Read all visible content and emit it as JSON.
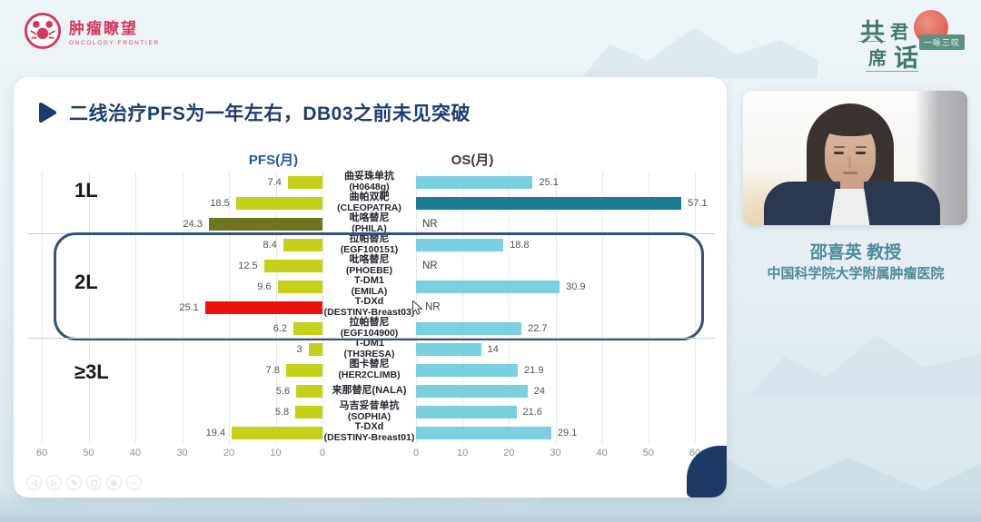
{
  "header": {
    "logo_left": {
      "title": "肿瘤瞭望",
      "subtitle": "ONCOLOGY FRONTIER"
    },
    "logo_right": {
      "chars": [
        "共",
        "君",
        "席",
        "话"
      ],
      "badge": "一咏三叹"
    }
  },
  "slide": {
    "title": "二线治疗PFS为一年左右，DB03之前未见突破"
  },
  "chart_data": {
    "type": "bar",
    "orientation": "horizontal-mirrored",
    "left_header": "PFS(月)",
    "right_header": "OS(月)",
    "axis": {
      "max": 60,
      "left_ticks": [
        "60",
        "50",
        "40",
        "30",
        "20",
        "10",
        "0"
      ],
      "right_ticks": [
        "0",
        "10",
        "20",
        "30",
        "40",
        "50",
        "60"
      ]
    },
    "colors": {
      "pfs_default": "#c3d219",
      "pfs_dark": "#6d751f",
      "pfs_highlight": "#ee0f0f",
      "os_default": "#7ad0e0",
      "os_dark": "#1b7d93"
    },
    "groups": [
      {
        "label": "1L",
        "count": 3
      },
      {
        "label": "2L",
        "count": 5,
        "boxed": true
      },
      {
        "label": "≥3L",
        "count": 5
      }
    ],
    "rows": [
      {
        "group": "1L",
        "drug": "曲妥珠单抗",
        "trial": "(H0648g)",
        "pfs": 7.4,
        "os": 25.1
      },
      {
        "group": "1L",
        "drug": "曲帕双靶",
        "trial": "(CLEOPATRA)",
        "pfs": 18.5,
        "os": 57.1,
        "os_style": "dark"
      },
      {
        "group": "1L",
        "drug": "吡咯替尼",
        "trial": "(PHILA)",
        "pfs": 24.3,
        "pfs_style": "dark",
        "os": null,
        "os_label": "NR"
      },
      {
        "group": "2L",
        "drug": "拉帕替尼",
        "trial": "(EGF100151)",
        "pfs": 8.4,
        "os": 18.8
      },
      {
        "group": "2L",
        "drug": "吡咯替尼",
        "trial": "(PHOEBE)",
        "pfs": 12.5,
        "os": null,
        "os_label": "NR"
      },
      {
        "group": "2L",
        "drug": "T-DM1",
        "trial": "(EMILA)",
        "pfs": 9.6,
        "os": 30.9
      },
      {
        "group": "2L",
        "drug": "T-DXd",
        "trial": "(DESTINY-Breast03)",
        "pfs": 25.1,
        "pfs_style": "highlight",
        "os": null,
        "os_label": "NR",
        "cursor": true
      },
      {
        "group": "2L",
        "drug": "拉帕替尼",
        "trial": "(EGF104900)",
        "pfs": 6.2,
        "os": 22.7
      },
      {
        "group": "≥3L",
        "drug": "T-DM1",
        "trial": "(TH3RESA)",
        "pfs": 3,
        "os": 14
      },
      {
        "group": "≥3L",
        "drug": "图卡替尼",
        "trial": "(HER2CLIMB)",
        "pfs": 7.8,
        "os": 21.9
      },
      {
        "group": "≥3L",
        "drug": "来那替尼(NALA)",
        "trial": "",
        "pfs": 5.6,
        "os": 24
      },
      {
        "group": "≥3L",
        "drug": "马吉妥昔单抗",
        "trial": "(SOPHIA)",
        "pfs": 5.8,
        "os": 21.6
      },
      {
        "group": "≥3L",
        "drug": "T-DXd",
        "trial": "(DESTINY-Breast01)",
        "pfs": 19.4,
        "os": 29.1
      }
    ]
  },
  "presenter": {
    "name": "邵喜英 教授",
    "affiliation": "中国科学院大学附属肿瘤医院"
  },
  "toolbar": {
    "items": [
      {
        "name": "prev-slide",
        "glyph": "◁"
      },
      {
        "name": "next-slide",
        "glyph": "▷"
      },
      {
        "name": "annotate",
        "glyph": "✎"
      },
      {
        "name": "shape-tool",
        "glyph": "▢"
      },
      {
        "name": "zoom-tool",
        "glyph": "⊕"
      },
      {
        "name": "minimize",
        "glyph": "−"
      }
    ]
  }
}
